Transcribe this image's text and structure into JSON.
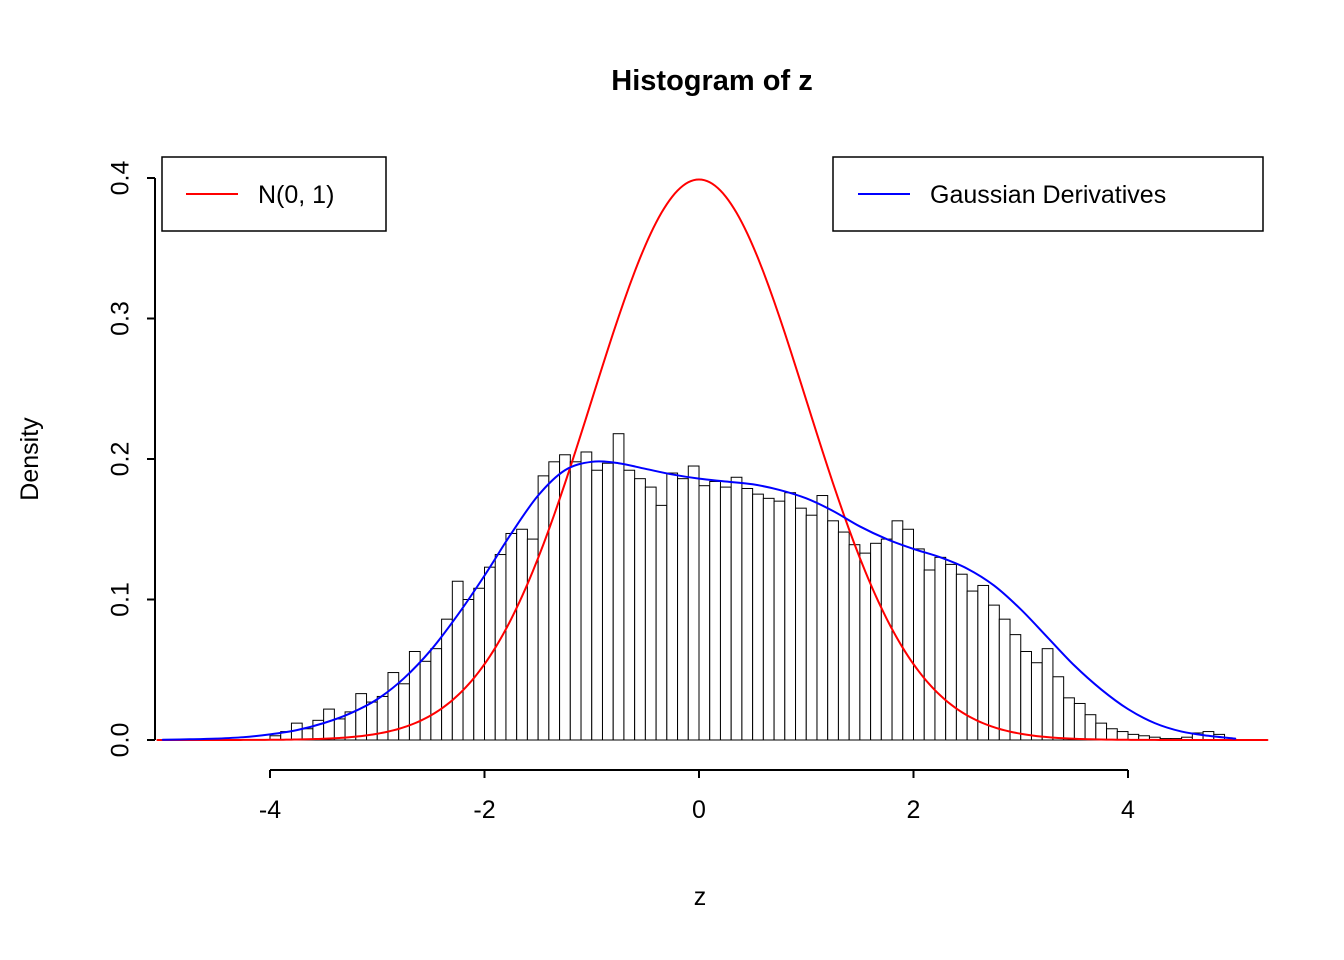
{
  "chart_data": {
    "type": "histogram",
    "title": "Histogram of z",
    "xlabel": "z",
    "ylabel": "Density",
    "x_ticks": [
      -4,
      -2,
      0,
      2,
      4
    ],
    "y_ticks": [
      "0.0",
      "0.1",
      "0.2",
      "0.3",
      "0.4"
    ],
    "xlim": [
      -5.05,
      5.3
    ],
    "ylim": [
      0,
      0.4
    ],
    "grid": false,
    "histogram": {
      "bin_start": -4.0,
      "bin_width": 0.1,
      "fill": "#FFFFFF",
      "stroke": "#000000",
      "heights": [
        0.003,
        0.006,
        0.012,
        0.008,
        0.014,
        0.022,
        0.015,
        0.02,
        0.033,
        0.027,
        0.031,
        0.048,
        0.04,
        0.063,
        0.056,
        0.065,
        0.086,
        0.113,
        0.1,
        0.108,
        0.123,
        0.132,
        0.147,
        0.15,
        0.143,
        0.188,
        0.198,
        0.203,
        0.198,
        0.205,
        0.192,
        0.197,
        0.218,
        0.192,
        0.186,
        0.18,
        0.167,
        0.19,
        0.186,
        0.195,
        0.181,
        0.184,
        0.18,
        0.187,
        0.179,
        0.175,
        0.172,
        0.17,
        0.176,
        0.165,
        0.16,
        0.174,
        0.156,
        0.148,
        0.139,
        0.133,
        0.14,
        0.143,
        0.156,
        0.15,
        0.136,
        0.121,
        0.13,
        0.125,
        0.118,
        0.106,
        0.11,
        0.096,
        0.086,
        0.075,
        0.063,
        0.055,
        0.065,
        0.045,
        0.03,
        0.026,
        0.018,
        0.012,
        0.008,
        0.006,
        0.004,
        0.003,
        0.002,
        0.001,
        0.001,
        0.002,
        0.005,
        0.006,
        0.004
      ]
    },
    "curves": [
      {
        "name": "N(0, 1)",
        "color": "#FF0000",
        "kind": "normal",
        "mean": 0,
        "sd": 1,
        "range": [
          -5.05,
          5.3
        ]
      },
      {
        "name": "Gaussian Derivatives",
        "color": "#0000FF",
        "kind": "points",
        "points": [
          [
            -5,
            0.0002
          ],
          [
            -4.75,
            0.0005
          ],
          [
            -4.5,
            0.001
          ],
          [
            -4.25,
            0.002
          ],
          [
            -4,
            0.004
          ],
          [
            -3.75,
            0.007
          ],
          [
            -3.5,
            0.012
          ],
          [
            -3.25,
            0.019
          ],
          [
            -3,
            0.029
          ],
          [
            -2.75,
            0.044
          ],
          [
            -2.5,
            0.064
          ],
          [
            -2.25,
            0.089
          ],
          [
            -2,
            0.117
          ],
          [
            -1.75,
            0.147
          ],
          [
            -1.5,
            0.174
          ],
          [
            -1.25,
            0.192
          ],
          [
            -1,
            0.198
          ],
          [
            -0.75,
            0.197
          ],
          [
            -0.5,
            0.193
          ],
          [
            -0.25,
            0.189
          ],
          [
            0,
            0.186
          ],
          [
            0.25,
            0.184
          ],
          [
            0.5,
            0.182
          ],
          [
            0.75,
            0.178
          ],
          [
            1,
            0.172
          ],
          [
            1.25,
            0.163
          ],
          [
            1.5,
            0.152
          ],
          [
            1.75,
            0.143
          ],
          [
            2,
            0.136
          ],
          [
            2.25,
            0.13
          ],
          [
            2.5,
            0.122
          ],
          [
            2.75,
            0.11
          ],
          [
            3,
            0.093
          ],
          [
            3.25,
            0.073
          ],
          [
            3.5,
            0.053
          ],
          [
            3.75,
            0.036
          ],
          [
            4,
            0.022
          ],
          [
            4.25,
            0.012
          ],
          [
            4.5,
            0.006
          ],
          [
            4.75,
            0.003
          ],
          [
            5,
            0.001
          ]
        ]
      }
    ],
    "legends": [
      {
        "label": "N(0, 1)",
        "color": "#FF0000"
      },
      {
        "label": "Gaussian Derivatives",
        "color": "#0000FF"
      }
    ]
  }
}
